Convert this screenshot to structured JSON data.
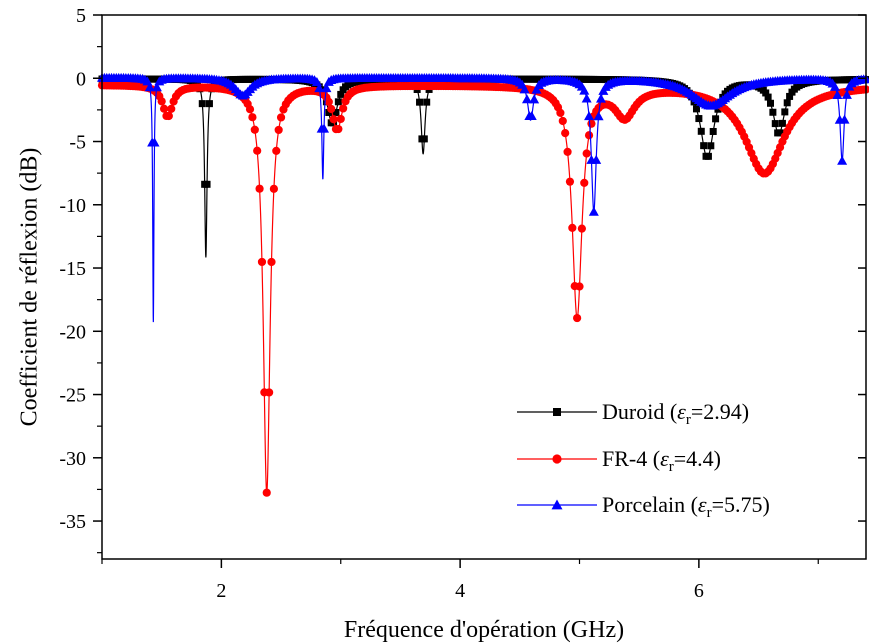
{
  "chart_data": {
    "type": "line",
    "title": "",
    "xlabel": "Fréquence d'opération (GHz)",
    "ylabel": "Coefficient de réflexion (dB)",
    "xlim": [
      1,
      7.4
    ],
    "ylim": [
      -38,
      5
    ],
    "x_ticks": [
      2,
      4,
      6
    ],
    "y_ticks": [
      5,
      0,
      -5,
      -10,
      -15,
      -20,
      -25,
      -30,
      -35
    ],
    "x_tick_labels": [
      "2",
      "4",
      "6"
    ],
    "y_tick_labels": [
      "5",
      "0",
      "-5",
      "-10",
      "-15",
      "-20",
      "-25",
      "-30",
      "-35"
    ],
    "grid": false,
    "legend_position": "bottom-right",
    "series": [
      {
        "name": "Duroid",
        "legend_prefix": "Duroid (",
        "legend_symbol": "ε",
        "legend_sub": "r",
        "legend_suffix": "=2.94)",
        "color": "#000000",
        "marker": "square",
        "base": -0.05,
        "resonances": [
          {
            "f": 1.87,
            "depth": 14.1,
            "width": 0.012
          },
          {
            "f": 2.93,
            "depth": 3.6,
            "width": 0.05
          },
          {
            "f": 3.69,
            "depth": 5.9,
            "width": 0.02
          },
          {
            "f": 6.07,
            "depth": 6.2,
            "width": 0.07
          },
          {
            "f": 6.67,
            "depth": 4.3,
            "width": 0.06
          }
        ]
      },
      {
        "name": "FR-4",
        "legend_prefix": "FR-4 (",
        "legend_symbol": "ε",
        "legend_sub": "r",
        "legend_suffix": "=4.4)",
        "color": "#ff0000",
        "marker": "circle",
        "base": -0.5,
        "resonances": [
          {
            "f": 1.55,
            "depth": 2.5,
            "width": 0.05
          },
          {
            "f": 2.38,
            "depth": 32.2,
            "width": 0.035
          },
          {
            "f": 2.97,
            "depth": 3.5,
            "width": 0.05
          },
          {
            "f": 4.98,
            "depth": 18.2,
            "width": 0.05
          },
          {
            "f": 5.38,
            "depth": 2.3,
            "width": 0.1
          },
          {
            "f": 6.55,
            "depth": 7.0,
            "width": 0.2
          }
        ]
      },
      {
        "name": "Porcelain",
        "legend_prefix": "Porcelain (",
        "legend_symbol": "ε",
        "legend_sub": "r",
        "legend_suffix": "=5.75)",
        "color": "#0000ff",
        "marker": "triangle",
        "base": 0.05,
        "resonances": [
          {
            "f": 1.43,
            "depth": 19.3,
            "width": 0.006
          },
          {
            "f": 2.18,
            "depth": 1.4,
            "width": 0.08
          },
          {
            "f": 2.85,
            "depth": 8.0,
            "width": 0.01
          },
          {
            "f": 4.59,
            "depth": 3.3,
            "width": 0.03
          },
          {
            "f": 5.12,
            "depth": 10.5,
            "width": 0.025
          },
          {
            "f": 6.1,
            "depth": 2.2,
            "width": 0.2
          },
          {
            "f": 7.2,
            "depth": 6.5,
            "width": 0.02
          }
        ]
      }
    ]
  }
}
